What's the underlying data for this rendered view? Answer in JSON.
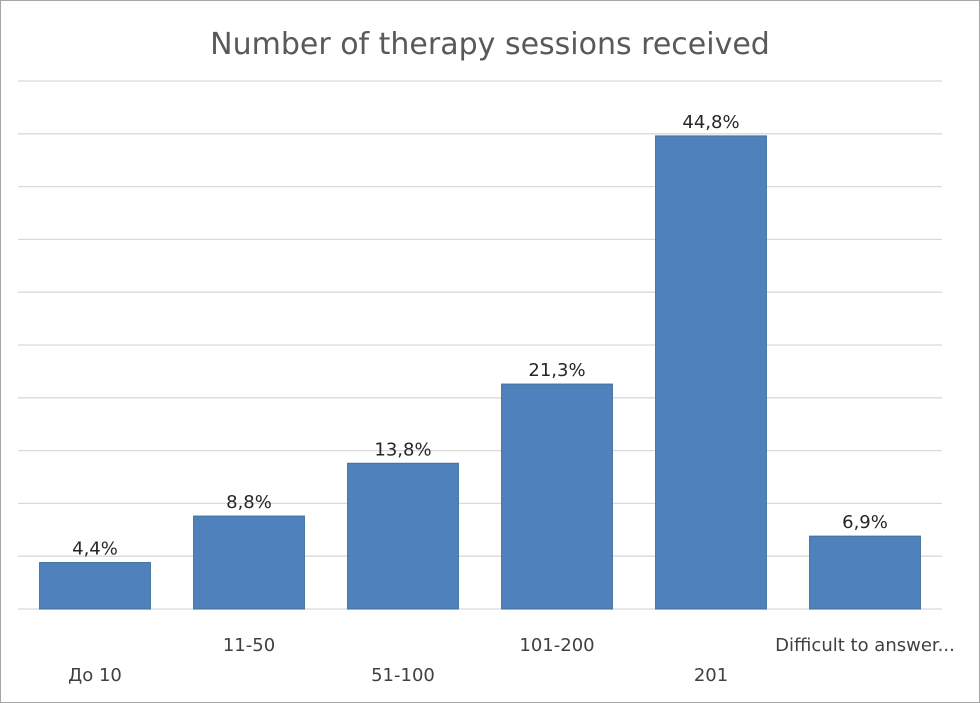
{
  "chart_data": {
    "type": "bar",
    "title": "Number of therapy sessions received",
    "categories": [
      "До 10",
      "11-50",
      "51-100",
      "101-200",
      "201",
      "Difficult to answer..."
    ],
    "values": [
      4.4,
      8.8,
      13.8,
      21.3,
      44.8,
      6.9
    ],
    "data_labels": [
      "4,4%",
      "8,8%",
      "13,8%",
      "21,3%",
      "44,8%",
      "6,9%"
    ],
    "xlabel": "",
    "ylabel": "",
    "ylim": [
      0,
      50
    ],
    "grid": true,
    "bar_color": "#4f81bd",
    "legend": "none"
  }
}
